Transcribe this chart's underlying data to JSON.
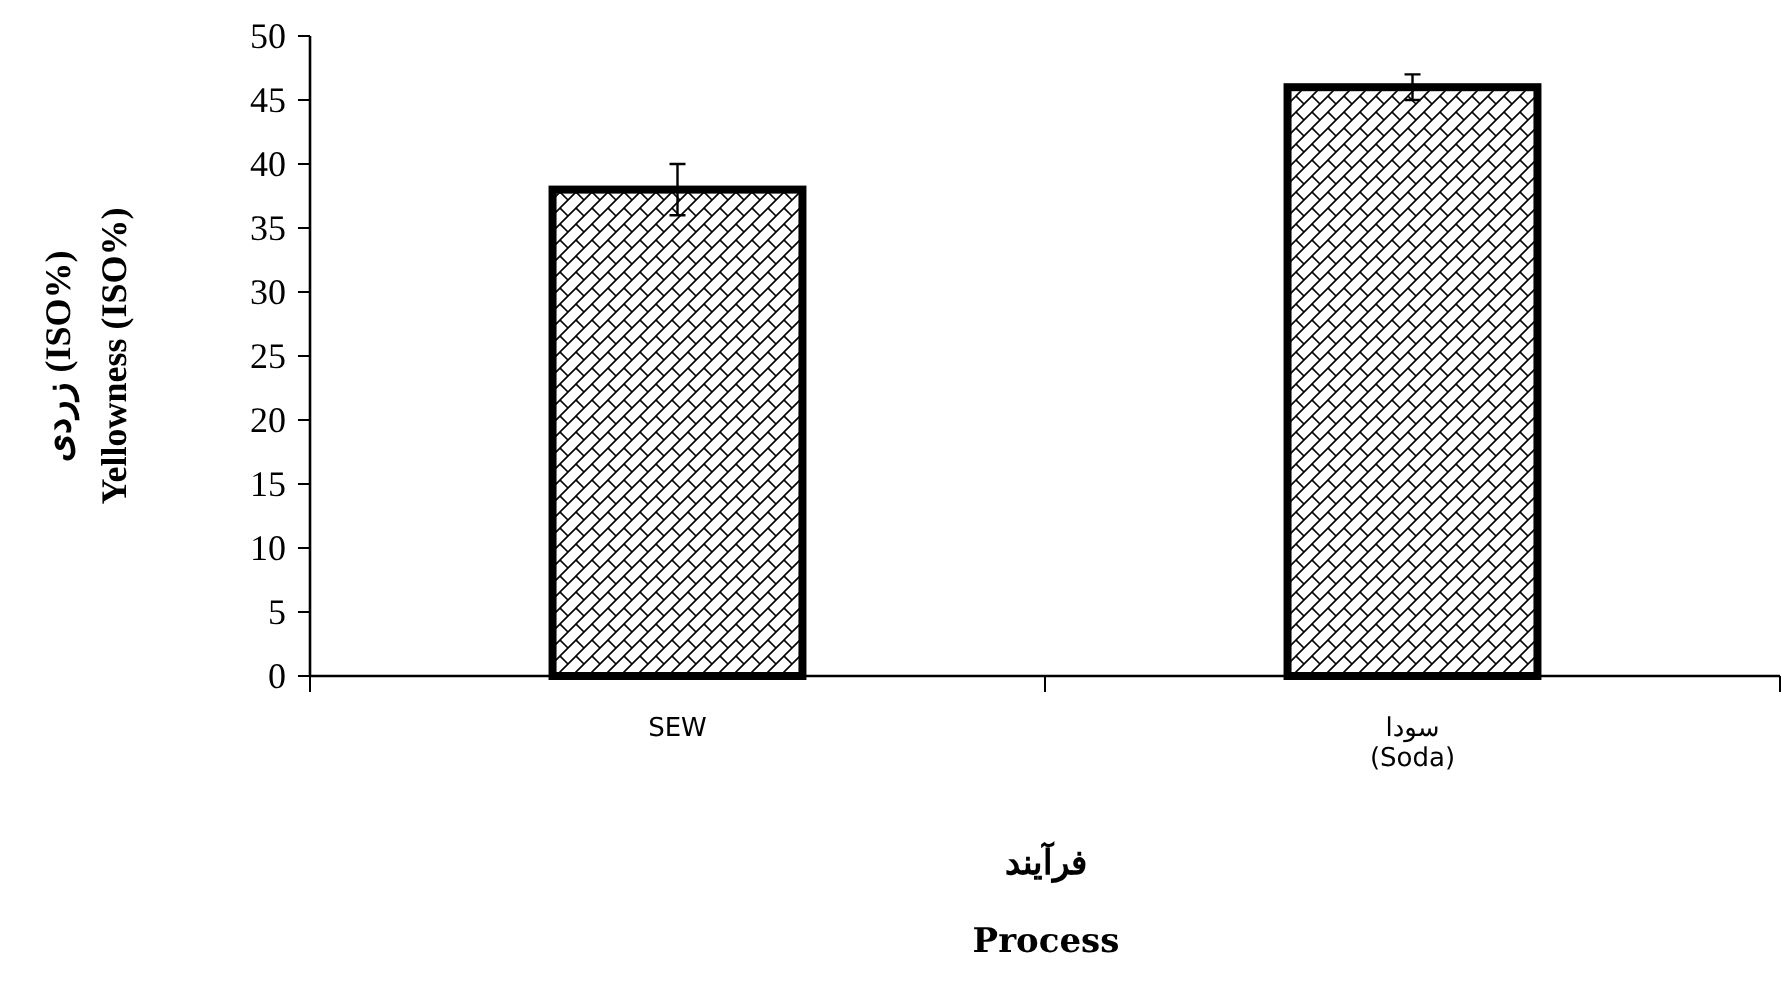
{
  "chart_data": {
    "type": "bar",
    "categories": [
      "SEW",
      "سودا\n(Soda)"
    ],
    "values": [
      38,
      46
    ],
    "errors": [
      2,
      1
    ],
    "color": "#000000",
    "ylim": [
      0,
      50
    ],
    "yticks": [
      0,
      5,
      10,
      15,
      20,
      25,
      30,
      35,
      40,
      45,
      50
    ],
    "ylabel": "زردی (ISO%)\nYellowness (ISO%)",
    "xlabel": "فرآیند\nProcess",
    "grid": false
  }
}
